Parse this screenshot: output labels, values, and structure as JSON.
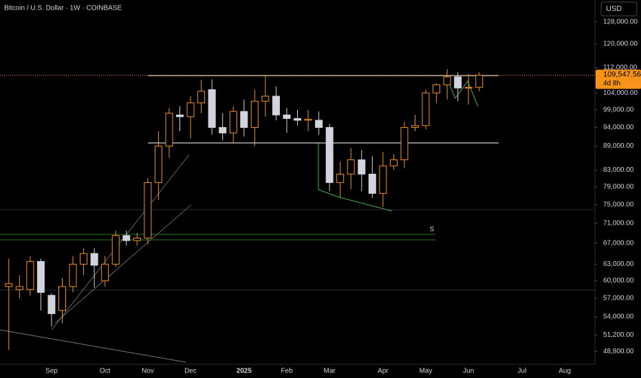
{
  "chart_data": {
    "type": "candlestick",
    "title": "Bitcoin / U.S. Dollar · 1W · COINBASE",
    "currency": "USD",
    "annotation": "S",
    "log_scale": true,
    "up_color": "#f7931a",
    "down_color": "#d1d4dc",
    "categories": [
      null,
      null,
      null,
      null,
      "Sep",
      null,
      null,
      null,
      null,
      "Oct",
      null,
      null,
      null,
      "Nov",
      null,
      null,
      null,
      "Dec",
      null,
      null,
      null,
      null,
      "2025",
      null,
      null,
      null,
      "Feb",
      null,
      null,
      null,
      "Mar",
      null,
      null,
      null,
      null,
      "Apr",
      null,
      null,
      null,
      "May",
      null,
      null,
      null,
      "Jun",
      null,
      null,
      null,
      null,
      "Jul",
      null,
      null,
      null,
      "Aug",
      null,
      null
    ],
    "open": [
      59000,
      58500,
      58500,
      63500,
      57500,
      55000,
      59000,
      63000,
      65000,
      60000,
      63000,
      68500,
      67500,
      68000,
      80000,
      89000,
      97500,
      97000,
      101000,
      105000,
      94000,
      92500,
      98500,
      94000,
      101500,
      103000,
      97500,
      96500,
      96000,
      96000,
      94000,
      80000,
      82000,
      85500,
      82000,
      77500,
      84000,
      85500,
      94000,
      94500,
      104000,
      106500,
      109000,
      105500,
      105700,
      null,
      null,
      null,
      null,
      null,
      null,
      null,
      null,
      null,
      null
    ],
    "high": [
      64000,
      61000,
      64500,
      64000,
      57800,
      60500,
      64500,
      66000,
      66000,
      64500,
      69500,
      69500,
      69000,
      81000,
      93000,
      99500,
      100000,
      103000,
      108000,
      108200,
      98000,
      100000,
      102000,
      105000,
      109500,
      106000,
      99500,
      99000,
      99000,
      98500,
      95000,
      85000,
      88500,
      88000,
      86500,
      87500,
      87000,
      95500,
      97500,
      105000,
      107000,
      111500,
      110500,
      110000,
      110500,
      null,
      null,
      null,
      null,
      null,
      null,
      null,
      null,
      null,
      null
    ],
    "low": [
      49000,
      57000,
      57500,
      55000,
      52500,
      53000,
      58000,
      61000,
      58800,
      59000,
      62500,
      66500,
      66500,
      66800,
      76000,
      86000,
      93000,
      91000,
      98000,
      92000,
      90500,
      90000,
      91500,
      89000,
      97000,
      96000,
      92500,
      94500,
      93000,
      92000,
      78000,
      76500,
      78500,
      78000,
      76500,
      74500,
      83000,
      83500,
      93000,
      93500,
      101000,
      102000,
      101500,
      100500,
      104500,
      null,
      null,
      null,
      null,
      null,
      null,
      null,
      null,
      null,
      null
    ],
    "close": [
      59500,
      59000,
      63500,
      58000,
      54500,
      59000,
      63000,
      65000,
      62800,
      63000,
      68500,
      67500,
      68000,
      80000,
      89000,
      98000,
      97000,
      101000,
      104500,
      94000,
      92500,
      98500,
      94000,
      101500,
      103000,
      97500,
      96500,
      96000,
      96300,
      94000,
      80000,
      82000,
      85500,
      82000,
      77500,
      84000,
      85500,
      94000,
      94500,
      104000,
      106500,
      109000,
      105500,
      105700,
      109547.56,
      null,
      null,
      null,
      null,
      null,
      null,
      null,
      null,
      null,
      null
    ],
    "last_price_label": "109,547.56",
    "countdown": "4d 8h",
    "ylim": [
      47000,
      136500
    ],
    "yticks": [
      {
        "value": 128000,
        "label": "128,000.00"
      },
      {
        "value": 120000,
        "label": "120,000.00"
      },
      {
        "value": 112000,
        "label": "112,000.00"
      },
      {
        "value": 104000,
        "label": "104,000.00"
      },
      {
        "value": 99000,
        "label": "99,000.00"
      },
      {
        "value": 94000,
        "label": "94,000.00"
      },
      {
        "value": 89000,
        "label": "89,000.00"
      },
      {
        "value": 83000,
        "label": "83,000.00"
      },
      {
        "value": 79000,
        "label": "79,000.00"
      },
      {
        "value": 75000,
        "label": "75,000.00"
      },
      {
        "value": 71000,
        "label": "71,000.00"
      },
      {
        "value": 67000,
        "label": "67,000.00"
      },
      {
        "value": 63000,
        "label": "63,000.00"
      },
      {
        "value": 60000,
        "label": "60,000.00"
      },
      {
        "value": 57000,
        "label": "57,000.00"
      },
      {
        "value": 54000,
        "label": "54,000.00"
      },
      {
        "value": 51200,
        "label": "51,200.00"
      },
      {
        "value": 48800,
        "label": "48,800.00"
      }
    ]
  }
}
